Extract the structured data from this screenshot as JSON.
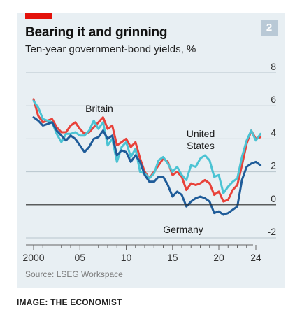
{
  "header": {
    "title": "Bearing it and grinning",
    "subtitle": "Ten-year government-bond yields, %",
    "chart_number": "2"
  },
  "footer": {
    "source": "Source: LSEG Workspace",
    "credit": "IMAGE: THE ECONOMIST"
  },
  "colors": {
    "accent": "#e3120b",
    "britain": "#e8423a",
    "united_states": "#4bc3d3",
    "germany": "#1f5c99",
    "grid": "#b7c4cc",
    "zero_line": "#2b2b2b",
    "panel": "#e8eff3"
  },
  "chart_data": {
    "type": "line",
    "title": "Bearing it and grinning",
    "subtitle": "Ten-year government-bond yields, %",
    "xlim": [
      2000,
      2024.5
    ],
    "ylim": [
      -2,
      8
    ],
    "x_ticks": [
      {
        "value": 2000,
        "label": "2000"
      },
      {
        "value": 2005,
        "label": "05"
      },
      {
        "value": 2010,
        "label": "10"
      },
      {
        "value": 2015,
        "label": "15"
      },
      {
        "value": 2020,
        "label": "20"
      },
      {
        "value": 2024,
        "label": "24"
      }
    ],
    "y_ticks": [
      {
        "value": -2,
        "label": "-2"
      },
      {
        "value": 0,
        "label": "0"
      },
      {
        "value": 2,
        "label": "2"
      },
      {
        "value": 4,
        "label": "4"
      },
      {
        "value": 6,
        "label": "6"
      },
      {
        "value": 8,
        "label": "8"
      }
    ],
    "grid": true,
    "x": [
      2000,
      2000.5,
      2001,
      2001.5,
      2002,
      2002.5,
      2003,
      2003.5,
      2004,
      2004.5,
      2005,
      2005.5,
      2006,
      2006.5,
      2007,
      2007.5,
      2008,
      2008.5,
      2009,
      2009.5,
      2010,
      2010.5,
      2011,
      2011.5,
      2012,
      2012.5,
      2013,
      2013.5,
      2014,
      2014.5,
      2015,
      2015.5,
      2016,
      2016.5,
      2017,
      2017.5,
      2018,
      2018.5,
      2019,
      2019.5,
      2020,
      2020.5,
      2021,
      2021.5,
      2022,
      2022.5,
      2023,
      2023.5,
      2024,
      2024.5
    ],
    "series": [
      {
        "name": "Britain",
        "color_key": "britain",
        "values": [
          6.4,
          5.4,
          5.0,
          5.1,
          5.2,
          4.7,
          4.4,
          4.4,
          4.8,
          5.0,
          4.6,
          4.3,
          4.4,
          4.7,
          5.0,
          5.3,
          4.6,
          4.8,
          3.6,
          3.8,
          4.0,
          3.5,
          3.8,
          2.8,
          2.0,
          1.6,
          2.0,
          2.4,
          2.8,
          2.6,
          1.8,
          2.0,
          1.7,
          0.9,
          1.3,
          1.2,
          1.3,
          1.5,
          1.3,
          0.6,
          0.8,
          0.2,
          0.3,
          0.9,
          1.2,
          2.4,
          3.7,
          4.5,
          4.0,
          4.1
        ]
      },
      {
        "name": "United States",
        "color_key": "united_states",
        "values": [
          6.3,
          5.9,
          5.2,
          5.1,
          5.0,
          4.3,
          3.8,
          4.3,
          4.3,
          4.4,
          4.2,
          4.2,
          4.5,
          5.1,
          4.6,
          5.0,
          3.6,
          4.0,
          2.6,
          3.5,
          3.8,
          2.9,
          3.4,
          2.0,
          1.9,
          1.6,
          1.9,
          2.7,
          2.9,
          2.5,
          2.0,
          2.3,
          1.8,
          1.5,
          2.4,
          2.3,
          2.8,
          3.0,
          2.7,
          1.7,
          1.8,
          0.7,
          1.1,
          1.4,
          1.6,
          2.9,
          3.9,
          4.5,
          3.9,
          4.3
        ]
      },
      {
        "name": "Germany",
        "color_key": "germany",
        "values": [
          5.3,
          5.1,
          4.8,
          4.9,
          5.0,
          4.5,
          4.2,
          3.9,
          4.2,
          4.0,
          3.6,
          3.2,
          3.5,
          4.0,
          4.1,
          4.5,
          4.0,
          4.2,
          3.0,
          3.3,
          3.2,
          2.6,
          3.0,
          2.6,
          1.8,
          1.4,
          1.4,
          1.7,
          1.7,
          1.2,
          0.5,
          0.8,
          0.6,
          -0.1,
          0.2,
          0.4,
          0.5,
          0.4,
          0.2,
          -0.5,
          -0.4,
          -0.6,
          -0.5,
          -0.3,
          -0.1,
          1.5,
          2.3,
          2.5,
          2.6,
          2.4
        ]
      }
    ],
    "annotations": [
      {
        "text": "Britain",
        "series": "Britain"
      },
      {
        "text": "United\nStates",
        "series": "United States"
      },
      {
        "text": "Germany",
        "series": "Germany"
      }
    ]
  }
}
